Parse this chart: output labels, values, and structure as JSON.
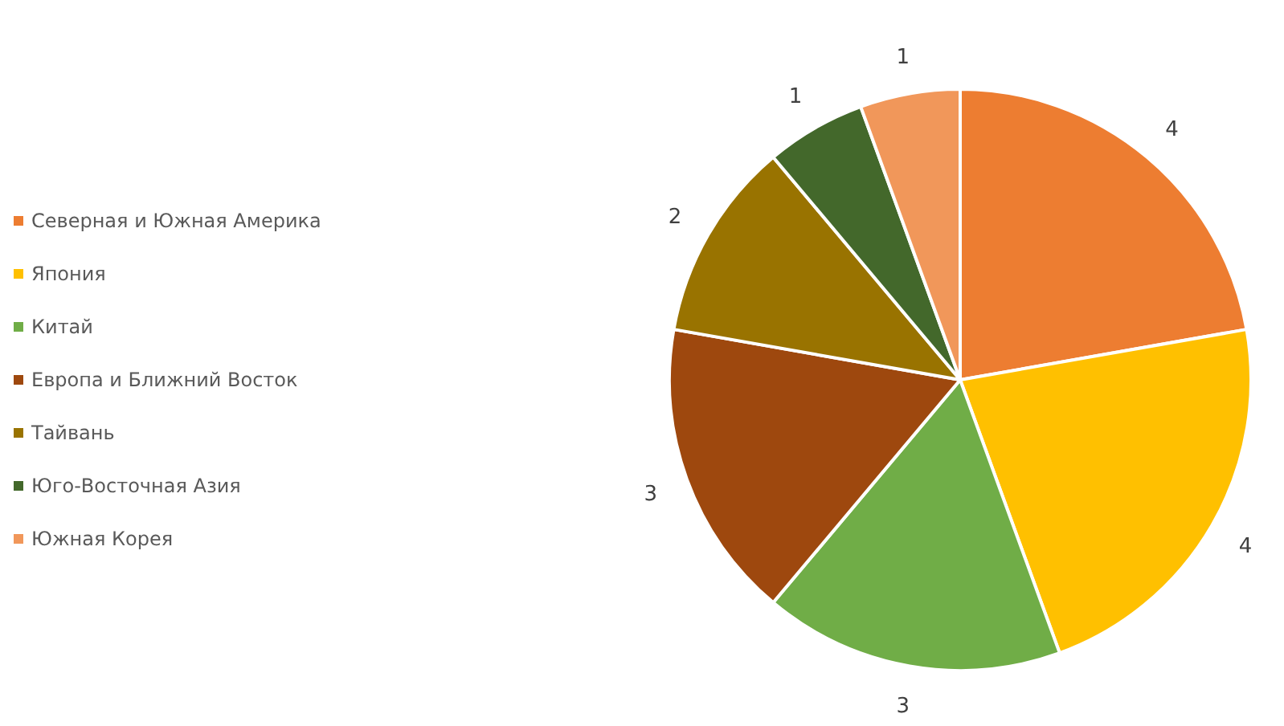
{
  "chart_data": {
    "type": "pie",
    "categories": [
      "Северная и Южная Америка",
      "Япония",
      "Китай",
      "Европа и Ближний Восток",
      "Тайвань",
      "Юго-Восточная Азия",
      "Южная Корея"
    ],
    "values": [
      4,
      4,
      3,
      3,
      2,
      1,
      1
    ],
    "colors": [
      "#ed7d31",
      "#ffc000",
      "#70ad47",
      "#9e480e",
      "#997300",
      "#43682b",
      "#f1975a"
    ],
    "data_labels": true,
    "legend": "left"
  }
}
